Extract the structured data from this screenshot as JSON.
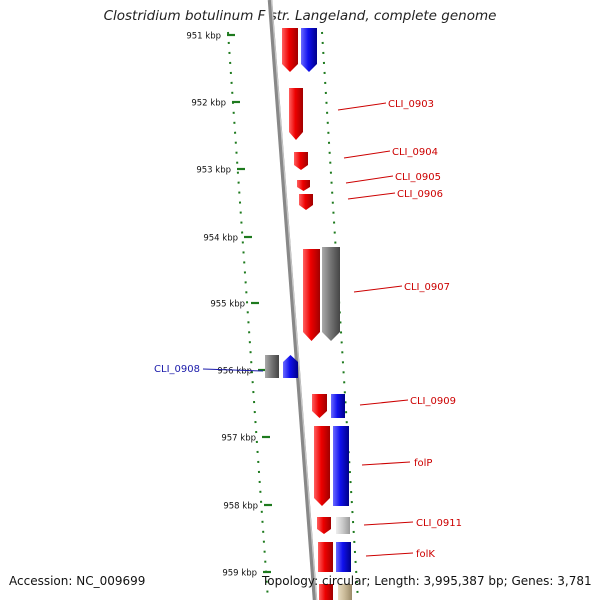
{
  "title": "Clostridium botulinum F str. Langeland, complete genome",
  "accession": "Accession: NC_009699",
  "topology": "Topology: circular; Length: 3,995,387 bp; Genes: 3,781",
  "colors": {
    "forward_gene": "#ee0000",
    "reverse_gene": "#1010ee",
    "other_gene": "#777777",
    "light_gene": "#c8c8c8",
    "tan_gene": "#c8b896",
    "label_red": "#cc0000",
    "label_blue": "#1a1aaa",
    "tick_green": "#1e7a1e",
    "backbone": "#888888"
  },
  "ticks": [
    {
      "label": "951 kbp"
    },
    {
      "label": "952 kbp"
    },
    {
      "label": "953 kbp"
    },
    {
      "label": "954 kbp"
    },
    {
      "label": "955 kbp"
    },
    {
      "label": "956 kbp"
    },
    {
      "label": "957 kbp"
    },
    {
      "label": "958 kbp"
    },
    {
      "label": "959 kbp"
    }
  ],
  "gene_labels": [
    {
      "text": "CLI_0903",
      "color": "red"
    },
    {
      "text": "CLI_0904",
      "color": "red"
    },
    {
      "text": "CLI_0905",
      "color": "red"
    },
    {
      "text": "CLI_0906",
      "color": "red"
    },
    {
      "text": "CLI_0907",
      "color": "red"
    },
    {
      "text": "CLI_0908",
      "color": "blue"
    },
    {
      "text": "CLI_0909",
      "color": "red"
    },
    {
      "text": "folP",
      "color": "red"
    },
    {
      "text": "CLI_0911",
      "color": "red"
    },
    {
      "text": "folK",
      "color": "red"
    }
  ]
}
